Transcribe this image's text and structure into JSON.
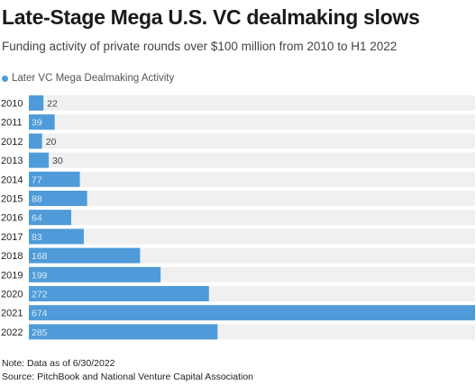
{
  "title": "Late-Stage Mega U.S. VC dealmaking slows",
  "subtitle": "Funding activity of private rounds over $100 million from 2010 to H1 2022",
  "legend_label": "Later VC Mega Dealmaking Activity",
  "note": "Note: Data as of 6/30/2022",
  "source": "Source: PitchBook and National Venture Capital Association",
  "colors": {
    "bar": "#4f9bd9",
    "track": "#f0f0f0",
    "inside_label": "#dde9f5",
    "outside_label": "#444444",
    "year_label": "#222222"
  },
  "chart_data": {
    "type": "bar",
    "orientation": "horizontal",
    "categories": [
      "2010",
      "2011",
      "2012",
      "2013",
      "2014",
      "2015",
      "2016",
      "2017",
      "2018",
      "2019",
      "2020",
      "2021",
      "2022"
    ],
    "series": [
      {
        "name": "Later VC Mega Dealmaking Activity",
        "values": [
          22,
          39,
          20,
          30,
          77,
          88,
          64,
          83,
          168,
          199,
          272,
          674,
          285
        ]
      }
    ],
    "xlim": [
      0,
      674
    ],
    "grid": false,
    "legend_position": "top-left"
  }
}
